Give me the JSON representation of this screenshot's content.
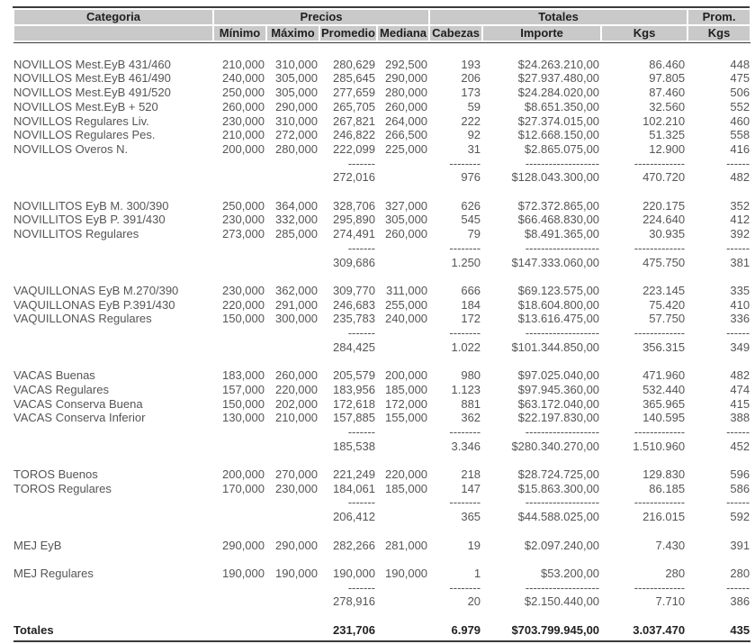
{
  "table": {
    "headers": {
      "category": "Categoria",
      "precios": "Precios",
      "totales": "Totales",
      "prom": "Prom.",
      "sub": [
        "Mínimo",
        "Máximo",
        "Promedio",
        "Mediana",
        "Cabezas",
        "Importe",
        "Kgs",
        "Kgs"
      ]
    },
    "columns": [
      "min",
      "max",
      "avg",
      "median",
      "heads",
      "amount",
      "kgs",
      "avg_kgs"
    ],
    "dashes": {
      "avg": "-------",
      "heads": "--------",
      "amount": "-------------------",
      "kgs": "-------------",
      "avg_kgs": "------"
    },
    "groups": [
      {
        "name": "NOVILLOS",
        "rows": [
          {
            "category": "NOVILLOS Mest.EyB 431/460",
            "min": "210,000",
            "max": "310,000",
            "avg": "280,629",
            "median": "292,500",
            "heads": "193",
            "amount": "$24.263.210,00",
            "kgs": "86.460",
            "avg_kgs": "448"
          },
          {
            "category": "NOVILLOS Mest.EyB 461/490",
            "min": "240,000",
            "max": "305,000",
            "avg": "285,645",
            "median": "290,000",
            "heads": "206",
            "amount": "$27.937.480,00",
            "kgs": "97.805",
            "avg_kgs": "475"
          },
          {
            "category": "NOVILLOS Mest.EyB 491/520",
            "min": "250,000",
            "max": "305,000",
            "avg": "277,659",
            "median": "280,000",
            "heads": "173",
            "amount": "$24.284.020,00",
            "kgs": "87.460",
            "avg_kgs": "506"
          },
          {
            "category": "NOVILLOS Mest.EyB + 520",
            "min": "260,000",
            "max": "290,000",
            "avg": "265,705",
            "median": "260,000",
            "heads": "59",
            "amount": "$8.651.350,00",
            "kgs": "32.560",
            "avg_kgs": "552"
          },
          {
            "category": "NOVILLOS Regulares Liv.",
            "min": "230,000",
            "max": "310,000",
            "avg": "267,821",
            "median": "264,000",
            "heads": "222",
            "amount": "$27.374.015,00",
            "kgs": "102.210",
            "avg_kgs": "460"
          },
          {
            "category": "NOVILLOS Regulares Pes.",
            "min": "210,000",
            "max": "272,000",
            "avg": "246,822",
            "median": "266,500",
            "heads": "92",
            "amount": "$12.668.150,00",
            "kgs": "51.325",
            "avg_kgs": "558"
          },
          {
            "category": "NOVILLOS Overos N.",
            "min": "200,000",
            "max": "280,000",
            "avg": "222,099",
            "median": "225,000",
            "heads": "31",
            "amount": "$2.865.075,00",
            "kgs": "12.900",
            "avg_kgs": "416"
          }
        ],
        "subtotal": {
          "avg": "272,016",
          "heads": "976",
          "amount": "$128.043.300,00",
          "kgs": "470.720",
          "avg_kgs": "482"
        }
      },
      {
        "name": "NOVILLITOS",
        "rows": [
          {
            "category": "NOVILLITOS EyB M. 300/390",
            "min": "250,000",
            "max": "364,000",
            "avg": "328,706",
            "median": "327,000",
            "heads": "626",
            "amount": "$72.372.865,00",
            "kgs": "220.175",
            "avg_kgs": "352"
          },
          {
            "category": "NOVILLITOS EyB P. 391/430",
            "min": "230,000",
            "max": "332,000",
            "avg": "295,890",
            "median": "305,000",
            "heads": "545",
            "amount": "$66.468.830,00",
            "kgs": "224.640",
            "avg_kgs": "412"
          },
          {
            "category": "NOVILLITOS Regulares",
            "min": "273,000",
            "max": "285,000",
            "avg": "274,491",
            "median": "260,000",
            "heads": "79",
            "amount": "$8.491.365,00",
            "kgs": "30.935",
            "avg_kgs": "392"
          }
        ],
        "subtotal": {
          "avg": "309,686",
          "heads": "1.250",
          "amount": "$147.333.060,00",
          "kgs": "475.750",
          "avg_kgs": "381"
        }
      },
      {
        "name": "VAQUILLONAS",
        "rows": [
          {
            "category": "VAQUILLONAS EyB M.270/390",
            "min": "230,000",
            "max": "362,000",
            "avg": "309,770",
            "median": "311,000",
            "heads": "666",
            "amount": "$69.123.575,00",
            "kgs": "223.145",
            "avg_kgs": "335"
          },
          {
            "category": "VAQUILLONAS EyB P.391/430",
            "min": "220,000",
            "max": "291,000",
            "avg": "246,683",
            "median": "255,000",
            "heads": "184",
            "amount": "$18.604.800,00",
            "kgs": "75.420",
            "avg_kgs": "410"
          },
          {
            "category": "VAQUILLONAS Regulares",
            "min": "150,000",
            "max": "300,000",
            "avg": "235,783",
            "median": "240,000",
            "heads": "172",
            "amount": "$13.616.475,00",
            "kgs": "57.750",
            "avg_kgs": "336"
          }
        ],
        "subtotal": {
          "avg": "284,425",
          "heads": "1.022",
          "amount": "$101.344.850,00",
          "kgs": "356.315",
          "avg_kgs": "349"
        }
      },
      {
        "name": "VACAS",
        "rows": [
          {
            "category": "VACAS Buenas",
            "min": "183,000",
            "max": "260,000",
            "avg": "205,579",
            "median": "200,000",
            "heads": "980",
            "amount": "$97.025.040,00",
            "kgs": "471.960",
            "avg_kgs": "482"
          },
          {
            "category": "VACAS Regulares",
            "min": "157,000",
            "max": "220,000",
            "avg": "183,956",
            "median": "185,000",
            "heads": "1.123",
            "amount": "$97.945.360,00",
            "kgs": "532.440",
            "avg_kgs": "474"
          },
          {
            "category": "VACAS Conserva Buena",
            "min": "150,000",
            "max": "202,000",
            "avg": "172,618",
            "median": "172,000",
            "heads": "881",
            "amount": "$63.172.040,00",
            "kgs": "365.965",
            "avg_kgs": "415"
          },
          {
            "category": "VACAS Conserva Inferior",
            "min": "130,000",
            "max": "210,000",
            "avg": "157,885",
            "median": "155,000",
            "heads": "362",
            "amount": "$22.197.830,00",
            "kgs": "140.595",
            "avg_kgs": "388"
          }
        ],
        "subtotal": {
          "avg": "185,538",
          "heads": "3.346",
          "amount": "$280.340.270,00",
          "kgs": "1.510.960",
          "avg_kgs": "452"
        }
      },
      {
        "name": "TOROS",
        "rows": [
          {
            "category": "TOROS Buenos",
            "min": "200,000",
            "max": "270,000",
            "avg": "221,249",
            "median": "220,000",
            "heads": "218",
            "amount": "$28.724.725,00",
            "kgs": "129.830",
            "avg_kgs": "596"
          },
          {
            "category": "TOROS Regulares",
            "min": "170,000",
            "max": "230,000",
            "avg": "184,061",
            "median": "185,000",
            "heads": "147",
            "amount": "$15.863.300,00",
            "kgs": "86.185",
            "avg_kgs": "586"
          }
        ],
        "subtotal": {
          "avg": "206,412",
          "heads": "365",
          "amount": "$44.588.025,00",
          "kgs": "216.015",
          "avg_kgs": "592"
        }
      },
      {
        "name": "MEJ EyB",
        "rows": [
          {
            "category": "MEJ EyB",
            "min": "290,000",
            "max": "290,000",
            "avg": "282,266",
            "median": "281,000",
            "heads": "19",
            "amount": "$2.097.240,00",
            "kgs": "7.430",
            "avg_kgs": "391"
          }
        ],
        "subtotal": null
      },
      {
        "name": "MEJ Regulares",
        "rows": [
          {
            "category": "MEJ Regulares",
            "min": "190,000",
            "max": "190,000",
            "avg": "190,000",
            "median": "190,000",
            "heads": "1",
            "amount": "$53.200,00",
            "kgs": "280",
            "avg_kgs": "280"
          }
        ],
        "subtotal": {
          "avg": "278,916",
          "heads": "20",
          "amount": "$2.150.440,00",
          "kgs": "7.710",
          "avg_kgs": "386"
        }
      }
    ],
    "totals": {
      "label": "Totales",
      "avg": "231,706",
      "heads": "6.979",
      "amount": "$703.799.945,00",
      "kgs": "3.037.470",
      "avg_kgs": "435"
    },
    "colors": {
      "header_bg": "#c9c9c9",
      "rule": "#3b3b3b",
      "body_text": "#555555",
      "header_text": "#1f1f1f"
    }
  }
}
